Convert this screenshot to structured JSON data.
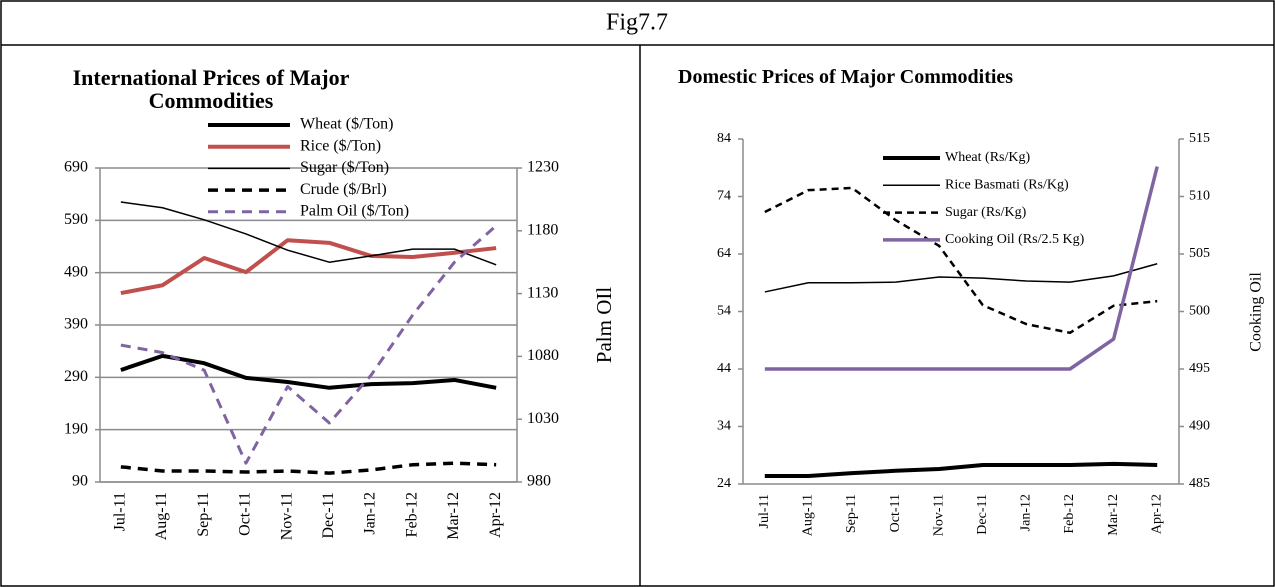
{
  "title": "Fig7.7",
  "chart_data": [
    {
      "type": "line",
      "title": "International Prices of Major Commodities",
      "y2label": "Palm OIl",
      "categories": [
        "Jul-11",
        "Aug-11",
        "Sep-11",
        "Oct-11",
        "Nov-11",
        "Dec-11",
        "Jan-12",
        "Feb-12",
        "Mar-12",
        "Apr-12"
      ],
      "series": [
        {
          "name": "Wheat ($/Ton)",
          "color": "#000000",
          "values": [
            304,
            331,
            317,
            289,
            281,
            270,
            277,
            279,
            285,
            270
          ]
        },
        {
          "name": "Rice ($/Ton)",
          "color": "#c0504d",
          "values": [
            451,
            466,
            518,
            491,
            552,
            547,
            522,
            520,
            528,
            537
          ]
        },
        {
          "name": "Sugar ($/Ton)",
          "color": "#000000",
          "values": [
            625,
            614,
            591,
            564,
            533,
            510,
            522,
            535,
            535,
            505
          ]
        },
        {
          "name": "Crude ($/Brl)",
          "color": "#000000",
          "dashed": true,
          "values": [
            119,
            111,
            111,
            109,
            111,
            107,
            113,
            123,
            126,
            123
          ]
        },
        {
          "name": "Palm Oil ($/Ton)",
          "color": "#8064a2",
          "dashed": true,
          "axis": "y2",
          "values": [
            1089,
            1083,
            1069,
            995,
            1056,
            1027,
            1065,
            1113,
            1155,
            1184
          ]
        }
      ],
      "ylim": [
        90,
        690
      ],
      "yticks": [
        90,
        190,
        290,
        390,
        490,
        590,
        690
      ],
      "y2lim": [
        980,
        1230
      ],
      "y2ticks": [
        980,
        1030,
        1080,
        1130,
        1180,
        1230
      ],
      "grid": true
    },
    {
      "type": "line",
      "title": "Domestic Prices of Major Commodities",
      "y2label": "Cooking Oil",
      "categories": [
        "Jul-11",
        "Aug-11",
        "Sep-11",
        "Oct-11",
        "Nov-11",
        "Dec-11",
        "Jan-12",
        "Feb-12",
        "Mar-12",
        "Apr-12"
      ],
      "series": [
        {
          "name": "Wheat (Rs/Kg)",
          "color": "#000000",
          "values": [
            25.4,
            25.4,
            25.9,
            26.3,
            26.6,
            27.3,
            27.3,
            27.3,
            27.5,
            27.3
          ]
        },
        {
          "name": "Rice Basmati (Rs/Kg)",
          "color": "#000000",
          "values": [
            57.4,
            59.0,
            59.0,
            59.1,
            60.0,
            59.8,
            59.3,
            59.1,
            60.2,
            62.3
          ]
        },
        {
          "name": "Sugar (Rs/Kg)",
          "color": "#000000",
          "dashed": true,
          "values": [
            71.3,
            75.1,
            75.5,
            69.9,
            65.4,
            55.1,
            51.8,
            50.3,
            55.0,
            55.8
          ]
        },
        {
          "name": "Cooking  Oil (Rs/2.5 Kg)",
          "color": "#8064a2",
          "axis": "y2",
          "values": [
            495.0,
            495.0,
            495.0,
            495.0,
            495.0,
            495.0,
            495.0,
            495.0,
            497.6,
            512.6
          ]
        }
      ],
      "ylim": [
        24,
        84
      ],
      "yticks": [
        24,
        34,
        44,
        54,
        64,
        74,
        84
      ],
      "y2lim": [
        485,
        515
      ],
      "y2ticks": [
        485,
        490,
        495,
        500,
        505,
        510,
        515
      ],
      "grid": false
    }
  ]
}
